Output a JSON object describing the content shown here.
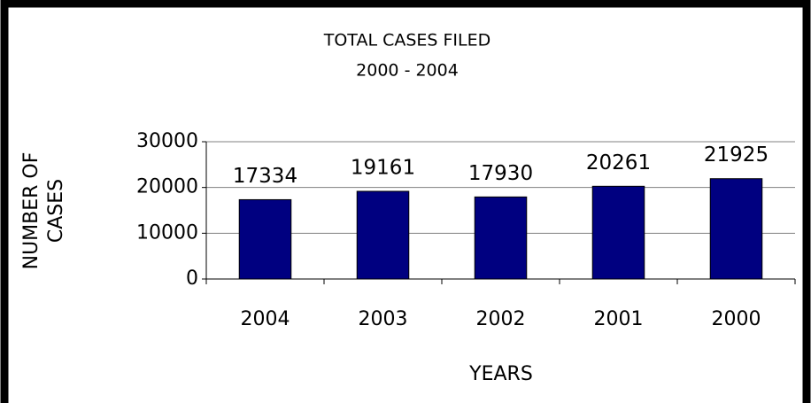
{
  "chart_data": {
    "type": "bar",
    "title": "TOTAL CASES FILED",
    "subtitle": "2000 - 2004",
    "xlabel": "YEARS",
    "ylabel": [
      "NUMBER OF",
      "CASES"
    ],
    "categories": [
      "2004",
      "2003",
      "2002",
      "2001",
      "2000"
    ],
    "values": [
      17334,
      19161,
      17930,
      20261,
      21925
    ],
    "color": "#000080",
    "ylim": [
      0,
      30000
    ],
    "yticks": [
      0,
      10000,
      20000,
      30000
    ],
    "grid": true
  }
}
